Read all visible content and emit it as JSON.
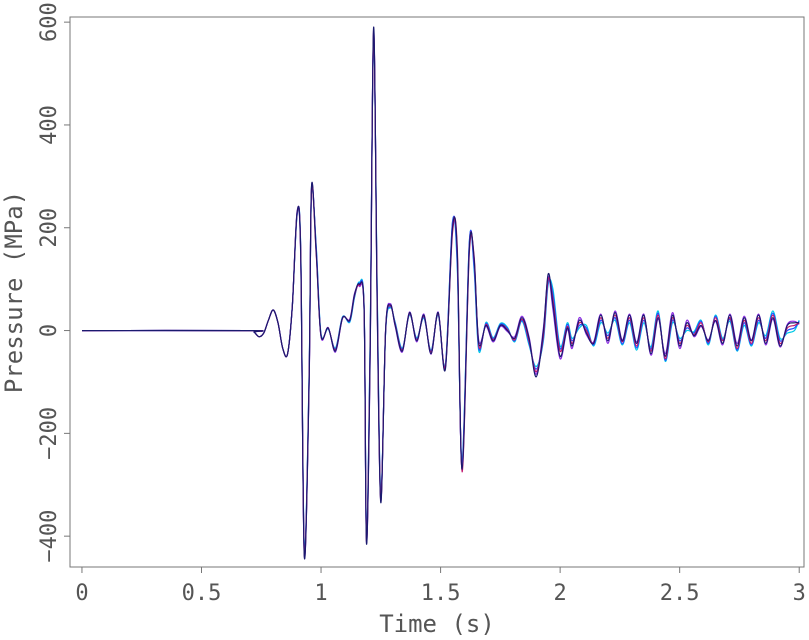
{
  "chart_data": {
    "type": "line",
    "title": "",
    "xlabel": "Time (s)",
    "ylabel": "Pressure (MPa)",
    "xlim": [
      -0.05,
      3.02
    ],
    "ylim": [
      -460,
      610
    ],
    "xticks": [
      0,
      0.5,
      1,
      1.5,
      2,
      2.5,
      3
    ],
    "xtick_labels": [
      "0",
      "0.5",
      "1",
      "1.5",
      "2",
      "2.5",
      "3"
    ],
    "yticks": [
      -400,
      -200,
      0,
      200,
      400,
      600
    ],
    "ytick_labels": [
      "−400",
      "−200",
      "0",
      "200",
      "400",
      "600"
    ],
    "grid": false,
    "legend": "none",
    "colors": [
      "#1a1a6e",
      "#c0166e",
      "#8a2be2",
      "#1e50ff",
      "#00c8e6"
    ],
    "series": [
      {
        "color": "#1a1a6e",
        "x": [
          0,
          0.7,
          0.72,
          0.74,
          0.76,
          0.78,
          0.8,
          0.82,
          0.84,
          0.86,
          0.88,
          0.9,
          0.915,
          0.93,
          0.95,
          0.96,
          0.98,
          1.0,
          1.03,
          1.06,
          1.09,
          1.12,
          1.14,
          1.16,
          1.18,
          1.19,
          1.205,
          1.22,
          1.235,
          1.25,
          1.27,
          1.29,
          1.31,
          1.34,
          1.37,
          1.4,
          1.43,
          1.46,
          1.49,
          1.52,
          1.55,
          1.57,
          1.59,
          1.62,
          1.64,
          1.66,
          1.69,
          1.72,
          1.75,
          1.78,
          1.81,
          1.84,
          1.87,
          1.9,
          1.93,
          1.95,
          1.97,
          2.0,
          2.03,
          2.05,
          2.08,
          2.11,
          2.14,
          2.17,
          2.2,
          2.23,
          2.26,
          2.29,
          2.32,
          2.35,
          2.38,
          2.41,
          2.44,
          2.47,
          2.5,
          2.53,
          2.56,
          2.59,
          2.62,
          2.65,
          2.68,
          2.71,
          2.74,
          2.77,
          2.8,
          2.83,
          2.86,
          2.89,
          2.92,
          2.95,
          2.98,
          3.0
        ],
        "y": [
          0,
          0,
          -3,
          -12,
          -5,
          20,
          40,
          15,
          -35,
          -45,
          50,
          230,
          150,
          -440,
          -100,
          280,
          150,
          -10,
          5,
          -40,
          25,
          20,
          70,
          90,
          40,
          -415,
          -50,
          590,
          50,
          -335,
          0,
          50,
          10,
          -40,
          35,
          -20,
          30,
          -45,
          35,
          -75,
          200,
          150,
          -270,
          160,
          140,
          -25,
          10,
          -20,
          10,
          0,
          -15,
          25,
          -15,
          -90,
          0,
          110,
          50,
          -50,
          5,
          -30,
          20,
          -5,
          -25,
          30,
          -20,
          35,
          -20,
          30,
          -25,
          30,
          -45,
          25,
          -50,
          30,
          -30,
          15,
          -10,
          10,
          -20,
          20,
          -25,
          30,
          -30,
          25,
          -20,
          30,
          -25,
          25,
          -30,
          10,
          15,
          15
        ]
      },
      {
        "color": "#c0166e",
        "x": [
          0,
          0.7,
          0.72,
          0.74,
          0.76,
          0.78,
          0.8,
          0.82,
          0.84,
          0.86,
          0.88,
          0.9,
          0.915,
          0.93,
          0.95,
          0.96,
          0.98,
          1.0,
          1.03,
          1.06,
          1.09,
          1.12,
          1.14,
          1.16,
          1.18,
          1.19,
          1.205,
          1.22,
          1.235,
          1.25,
          1.27,
          1.29,
          1.31,
          1.34,
          1.37,
          1.4,
          1.43,
          1.46,
          1.49,
          1.52,
          1.55,
          1.57,
          1.59,
          1.62,
          1.64,
          1.66,
          1.69,
          1.72,
          1.75,
          1.78,
          1.81,
          1.84,
          1.87,
          1.9,
          1.93,
          1.95,
          1.97,
          2.0,
          2.03,
          2.05,
          2.08,
          2.11,
          2.14,
          2.17,
          2.2,
          2.23,
          2.26,
          2.29,
          2.32,
          2.35,
          2.38,
          2.41,
          2.44,
          2.47,
          2.5,
          2.53,
          2.56,
          2.59,
          2.62,
          2.65,
          2.68,
          2.71,
          2.74,
          2.77,
          2.8,
          2.83,
          2.86,
          2.89,
          2.92,
          2.95,
          2.98,
          3.0
        ],
        "y": [
          0,
          0,
          -3,
          -12,
          -5,
          20,
          40,
          15,
          -35,
          -45,
          50,
          228,
          155,
          -435,
          -95,
          275,
          145,
          -10,
          5,
          -38,
          25,
          20,
          68,
          88,
          42,
          -410,
          -40,
          580,
          60,
          -330,
          0,
          48,
          12,
          -38,
          33,
          -18,
          28,
          -42,
          33,
          -70,
          190,
          160,
          -275,
          150,
          145,
          -30,
          12,
          -18,
          10,
          2,
          -18,
          22,
          -20,
          -80,
          -10,
          100,
          60,
          -40,
          8,
          -25,
          15,
          0,
          -25,
          25,
          -15,
          30,
          -22,
          25,
          -30,
          25,
          -40,
          30,
          -55,
          25,
          -25,
          10,
          -8,
          15,
          -22,
          25,
          -20,
          25,
          -35,
          20,
          -25,
          25,
          -20,
          30,
          -25,
          5,
          10,
          15
        ]
      },
      {
        "color": "#8a2be2",
        "x": [
          0,
          0.7,
          0.72,
          0.74,
          0.76,
          0.78,
          0.8,
          0.82,
          0.84,
          0.86,
          0.88,
          0.9,
          0.915,
          0.93,
          0.95,
          0.96,
          0.98,
          1.0,
          1.03,
          1.06,
          1.09,
          1.12,
          1.14,
          1.16,
          1.18,
          1.19,
          1.205,
          1.22,
          1.235,
          1.25,
          1.27,
          1.29,
          1.31,
          1.34,
          1.37,
          1.4,
          1.43,
          1.46,
          1.49,
          1.52,
          1.55,
          1.57,
          1.59,
          1.62,
          1.64,
          1.66,
          1.69,
          1.72,
          1.75,
          1.78,
          1.81,
          1.84,
          1.87,
          1.9,
          1.93,
          1.95,
          1.97,
          2.0,
          2.03,
          2.05,
          2.08,
          2.11,
          2.14,
          2.17,
          2.2,
          2.23,
          2.26,
          2.29,
          2.32,
          2.35,
          2.38,
          2.41,
          2.44,
          2.47,
          2.5,
          2.53,
          2.56,
          2.59,
          2.62,
          2.65,
          2.68,
          2.71,
          2.74,
          2.77,
          2.8,
          2.83,
          2.86,
          2.89,
          2.92,
          2.95,
          2.98,
          3.0
        ],
        "y": [
          0,
          0,
          -3,
          -12,
          -5,
          20,
          40,
          15,
          -35,
          -45,
          50,
          232,
          145,
          -438,
          -105,
          278,
          152,
          -12,
          6,
          -42,
          24,
          22,
          72,
          86,
          38,
          -412,
          -60,
          585,
          40,
          -332,
          2,
          52,
          8,
          -42,
          36,
          -22,
          32,
          -46,
          36,
          -72,
          205,
          140,
          -268,
          165,
          132,
          -20,
          8,
          -22,
          8,
          -2,
          -12,
          28,
          -12,
          -85,
          5,
          105,
          40,
          -55,
          2,
          -35,
          25,
          -8,
          -22,
          32,
          -25,
          38,
          -18,
          32,
          -22,
          32,
          -48,
          22,
          -45,
          35,
          -35,
          20,
          -12,
          8,
          -18,
          18,
          -28,
          32,
          -25,
          28,
          -18,
          32,
          -28,
          22,
          -32,
          12,
          18,
          12
        ]
      },
      {
        "color": "#1e50ff",
        "x": [
          0,
          0.7,
          0.72,
          0.74,
          0.76,
          0.78,
          0.8,
          0.82,
          0.84,
          0.86,
          0.88,
          0.9,
          0.915,
          0.93,
          0.95,
          0.96,
          0.98,
          1.0,
          1.03,
          1.06,
          1.09,
          1.12,
          1.14,
          1.16,
          1.18,
          1.19,
          1.205,
          1.22,
          1.235,
          1.25,
          1.27,
          1.29,
          1.31,
          1.34,
          1.37,
          1.4,
          1.43,
          1.46,
          1.49,
          1.52,
          1.55,
          1.57,
          1.59,
          1.62,
          1.64,
          1.66,
          1.69,
          1.72,
          1.75,
          1.78,
          1.81,
          1.84,
          1.87,
          1.9,
          1.93,
          1.95,
          1.97,
          2.0,
          2.03,
          2.05,
          2.08,
          2.11,
          2.14,
          2.17,
          2.2,
          2.23,
          2.26,
          2.29,
          2.32,
          2.35,
          2.38,
          2.41,
          2.44,
          2.47,
          2.5,
          2.53,
          2.56,
          2.59,
          2.62,
          2.65,
          2.68,
          2.71,
          2.74,
          2.77,
          2.8,
          2.83,
          2.86,
          2.89,
          2.92,
          2.95,
          2.98,
          3.0
        ],
        "y": [
          0,
          0,
          -3,
          -12,
          -5,
          20,
          40,
          15,
          -35,
          -45,
          50,
          226,
          158,
          -430,
          -90,
          272,
          158,
          -8,
          4,
          -36,
          26,
          18,
          66,
          92,
          44,
          -405,
          -30,
          575,
          70,
          -325,
          -2,
          46,
          14,
          -36,
          32,
          -16,
          26,
          -40,
          32,
          -68,
          210,
          130,
          -262,
          170,
          125,
          -35,
          14,
          -16,
          12,
          4,
          -20,
          20,
          -24,
          -75,
          -15,
          95,
          70,
          -35,
          12,
          -20,
          10,
          5,
          -28,
          20,
          -10,
          25,
          -26,
          20,
          -34,
          20,
          -36,
          34,
          -58,
          20,
          -20,
          5,
          -5,
          18,
          -25,
          28,
          -18,
          22,
          -38,
          15,
          -28,
          20,
          -15,
          34,
          -20,
          0,
          5,
          18
        ]
      },
      {
        "color": "#00c8e6",
        "x": [
          0,
          0.7,
          0.72,
          0.74,
          0.76,
          0.78,
          0.8,
          0.82,
          0.84,
          0.86,
          0.88,
          0.9,
          0.915,
          0.93,
          0.95,
          0.96,
          0.98,
          1.0,
          1.03,
          1.06,
          1.09,
          1.12,
          1.14,
          1.16,
          1.18,
          1.19,
          1.205,
          1.22,
          1.235,
          1.25,
          1.27,
          1.29,
          1.31,
          1.34,
          1.37,
          1.4,
          1.43,
          1.46,
          1.49,
          1.52,
          1.55,
          1.57,
          1.59,
          1.62,
          1.64,
          1.66,
          1.69,
          1.72,
          1.75,
          1.78,
          1.81,
          1.84,
          1.87,
          1.9,
          1.93,
          1.95,
          1.97,
          2.0,
          2.03,
          2.05,
          2.08,
          2.11,
          2.14,
          2.17,
          2.2,
          2.23,
          2.26,
          2.29,
          2.32,
          2.35,
          2.38,
          2.41,
          2.44,
          2.47,
          2.5,
          2.53,
          2.56,
          2.59,
          2.62,
          2.65,
          2.68,
          2.71,
          2.74,
          2.77,
          2.8,
          2.83,
          2.86,
          2.89,
          2.92,
          2.95,
          2.98,
          3.0
        ],
        "y": [
          0,
          0,
          -3,
          -12,
          -5,
          20,
          40,
          15,
          -35,
          -45,
          50,
          224,
          162,
          -425,
          -85,
          268,
          162,
          -6,
          3,
          -34,
          27,
          16,
          64,
          94,
          46,
          -400,
          -20,
          565,
          80,
          -320,
          -4,
          44,
          16,
          -34,
          30,
          -14,
          24,
          -38,
          30,
          -65,
          212,
          120,
          -255,
          172,
          118,
          -40,
          16,
          -14,
          14,
          6,
          -22,
          18,
          -28,
          -70,
          -20,
          90,
          80,
          -30,
          15,
          -15,
          5,
          10,
          -30,
          15,
          -5,
          20,
          -28,
          15,
          -38,
          15,
          -32,
          38,
          -60,
          15,
          -15,
          0,
          -2,
          20,
          -28,
          30,
          -15,
          18,
          -40,
          10,
          -30,
          15,
          -10,
          38,
          -15,
          -5,
          0,
          20
        ]
      }
    ]
  }
}
